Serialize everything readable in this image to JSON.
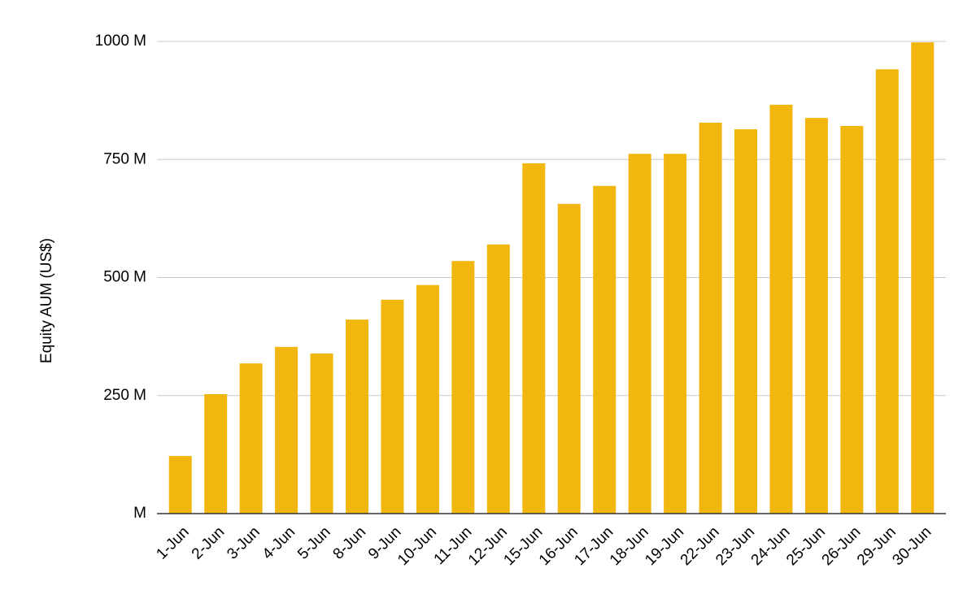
{
  "chart_data": {
    "type": "bar",
    "y_label": "Equity AUM (US$)",
    "categories": [
      "1-Jun",
      "2-Jun",
      "3-Jun",
      "4-Jun",
      "5-Jun",
      "8-Jun",
      "9-Jun",
      "10-Jun",
      "11-Jun",
      "12-Jun",
      "15-Jun",
      "16-Jun",
      "17-Jun",
      "18-Jun",
      "19-Jun",
      "22-Jun",
      "23-Jun",
      "24-Jun",
      "25-Jun",
      "26-Jun",
      "29-Jun",
      "30-Jun"
    ],
    "values": [
      122,
      253,
      318,
      353,
      339,
      411,
      453,
      484,
      535,
      570,
      742,
      656,
      694,
      762,
      762,
      828,
      814,
      866,
      838,
      821,
      941,
      998
    ],
    "color": "#f1b70e",
    "ylim": [
      0,
      1000
    ],
    "yticks": [
      {
        "value": 0,
        "label": "M"
      },
      {
        "value": 250,
        "label": "250 M"
      },
      {
        "value": 500,
        "label": "500 M"
      },
      {
        "value": 750,
        "label": "750 M"
      },
      {
        "value": 1000,
        "label": "1000 M"
      }
    ],
    "grid": true
  }
}
